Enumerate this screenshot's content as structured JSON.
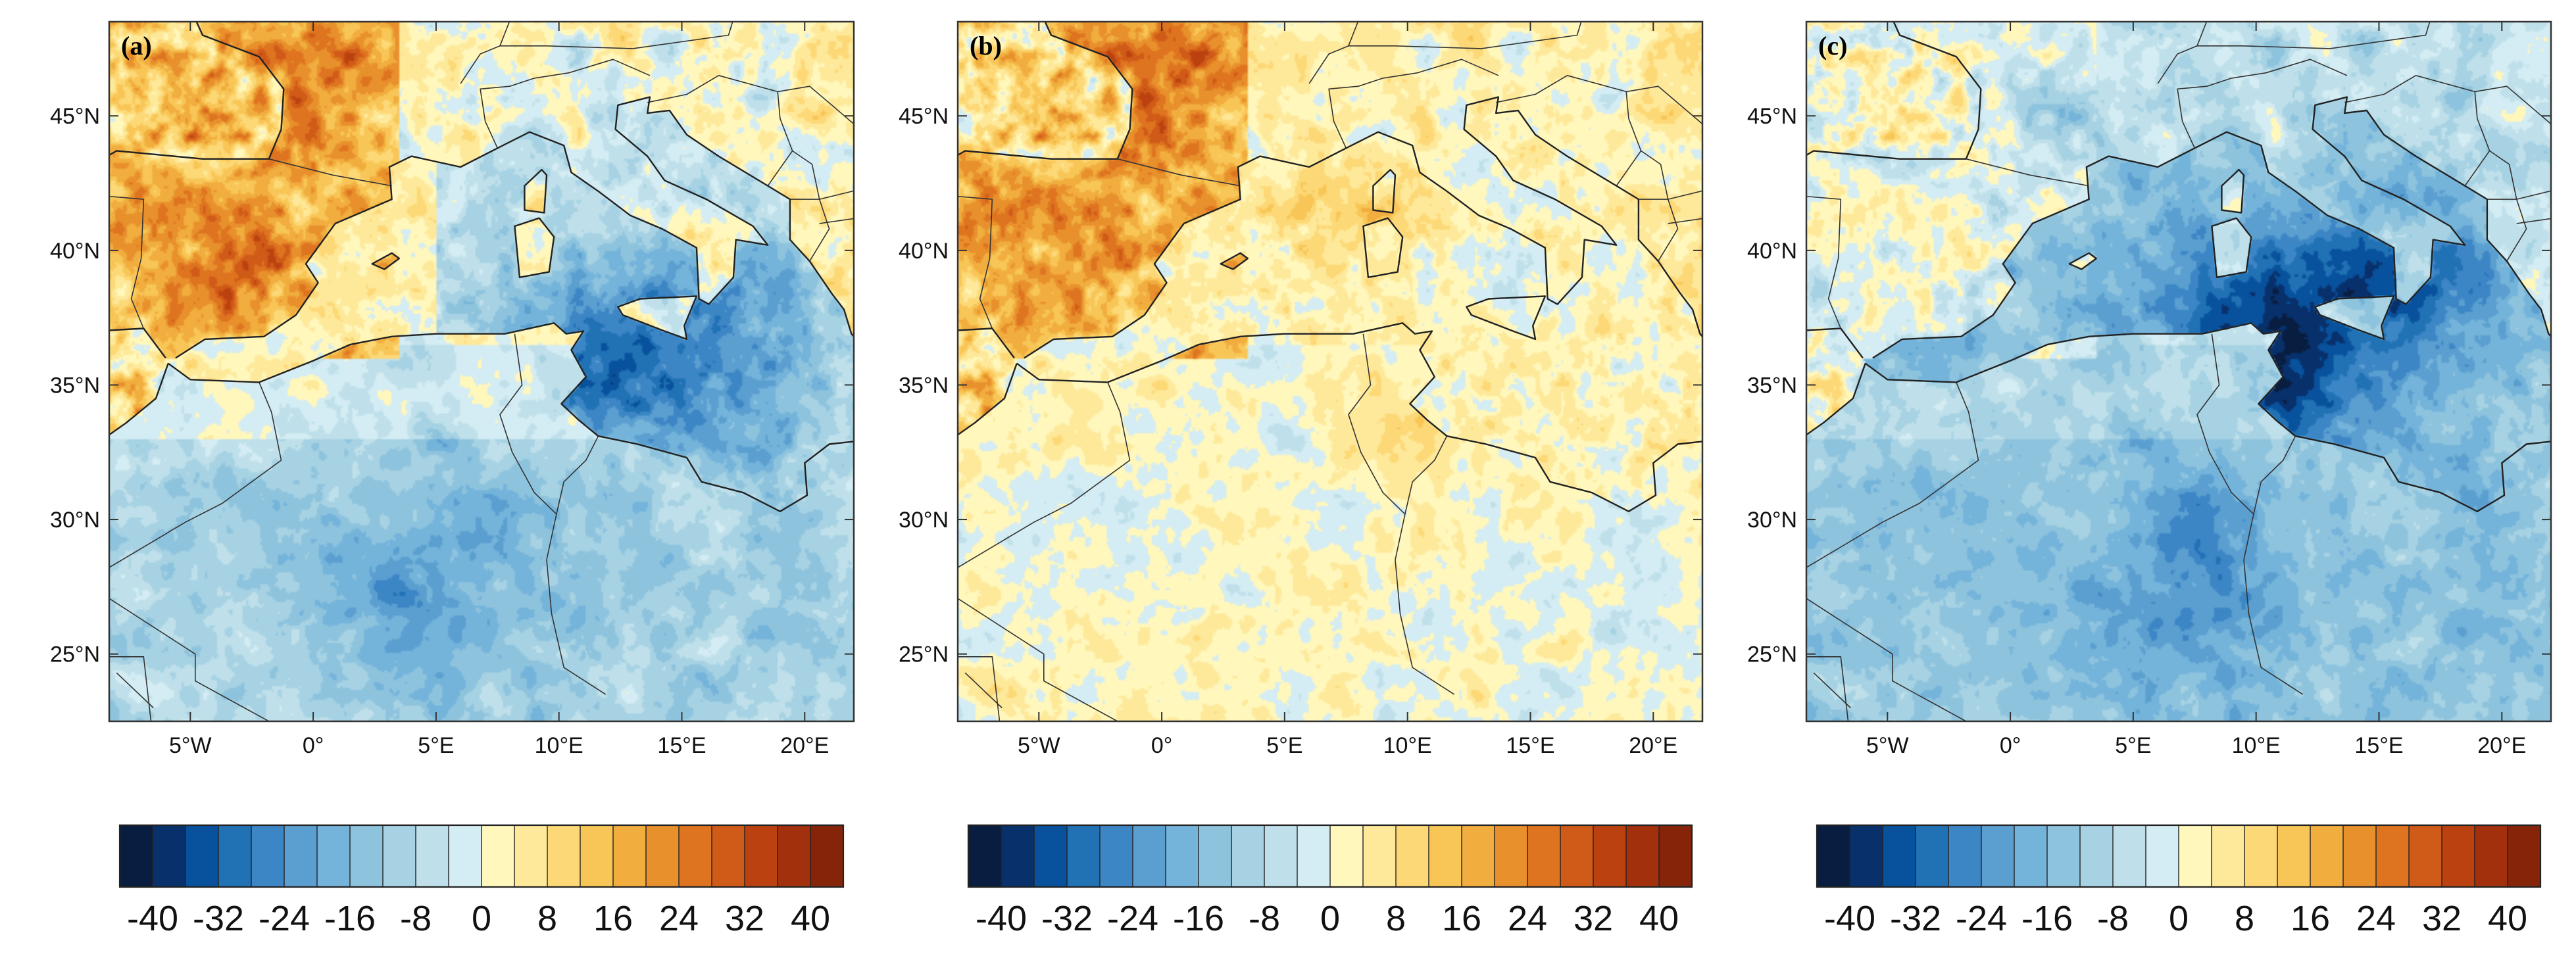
{
  "figure": {
    "panels": [
      {
        "label": "(a)",
        "regime": "a"
      },
      {
        "label": "(b)",
        "regime": "b"
      },
      {
        "label": "(c)",
        "regime": "c"
      }
    ],
    "lon_ticks": [
      "5°W",
      "0°",
      "5°E",
      "10°E",
      "15°E",
      "20°E"
    ],
    "lat_ticks": [
      "45°N",
      "40°N",
      "35°N",
      "30°N",
      "25°N"
    ],
    "colorbar": {
      "tick_labels": [
        "-40",
        "-32",
        "-24",
        "-16",
        "-8",
        "0",
        "8",
        "16",
        "24",
        "32",
        "40"
      ],
      "colors": [
        "#081d3f",
        "#08306b",
        "#08519c",
        "#2171b5",
        "#3d86c6",
        "#5a9fd0",
        "#74b3da",
        "#8ec3de",
        "#a6d2e3",
        "#bfe0ea",
        "#d4ecf3",
        "#fff7bc",
        "#fee99a",
        "#fdd876",
        "#f8c656",
        "#f1ad3e",
        "#e8902c",
        "#de7420",
        "#d05a17",
        "#bb4210",
        "#a2300c",
        "#86240a"
      ]
    }
  }
}
